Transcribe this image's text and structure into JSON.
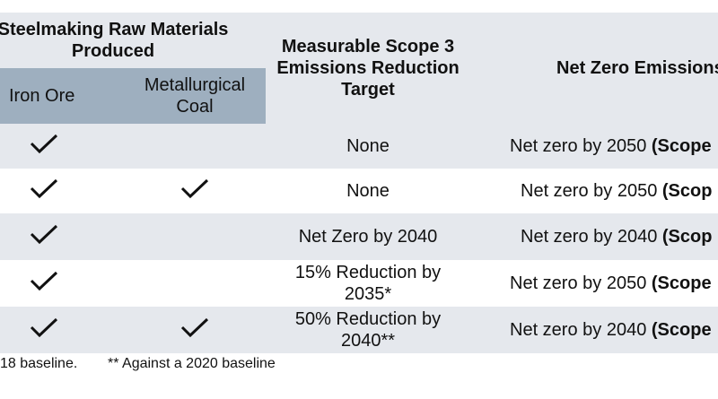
{
  "header": {
    "group_title": "Steelmaking Raw Materials Produced",
    "sub_iron_ore": "Iron Ore",
    "sub_met_coal": "Metallurgical Coal",
    "scope3_title": "Measurable Scope 3 Emissions Reduction Target",
    "net_zero_title": "Net Zero Emissions"
  },
  "rows": [
    {
      "iron_ore": true,
      "met_coal": false,
      "scope3": "None",
      "net_zero": "Net zero by 2050",
      "net_zero_scope": "(Scope"
    },
    {
      "iron_ore": true,
      "met_coal": true,
      "scope3": "None",
      "net_zero": "Net zero by 2050",
      "net_zero_scope": "(Scop"
    },
    {
      "iron_ore": true,
      "met_coal": false,
      "scope3": "Net Zero by 2040",
      "net_zero": "Net zero by 2040",
      "net_zero_scope": "(Scop"
    },
    {
      "iron_ore": true,
      "met_coal": false,
      "scope3": "15% Reduction by 2035*",
      "net_zero": "Net zero by 2050",
      "net_zero_scope": "(Scope"
    },
    {
      "iron_ore": true,
      "met_coal": true,
      "scope3": "50% Reduction by 2040**",
      "net_zero": "Net zero by 2040",
      "net_zero_scope": "(Scope"
    }
  ],
  "footnotes": {
    "first": "18 baseline.",
    "second": "** Against a 2020 baseline"
  },
  "icons": {
    "check": "check-icon"
  },
  "colors": {
    "header_light": "#e5e8ed",
    "header_mid": "#9eafbf",
    "stripe": "#e5e8ed"
  }
}
